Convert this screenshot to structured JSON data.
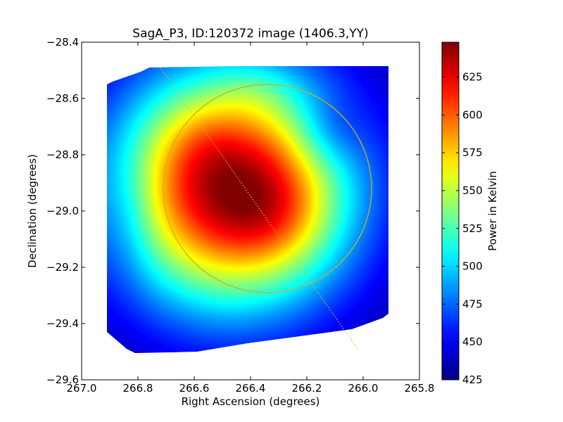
{
  "chart_data": {
    "type": "heatmap",
    "title": "SagA_P3, ID:120372 image (1406.3,YY)",
    "xlabel": "Right Ascension (degrees)",
    "ylabel": "Declination (degrees)",
    "xlim": [
      267.0,
      265.8
    ],
    "ylim": [
      -29.6,
      -28.4
    ],
    "x_ticks": [
      267.0,
      266.8,
      266.6,
      266.4,
      266.2,
      266.0,
      265.8
    ],
    "x_tick_labels": [
      "267.0",
      "266.8",
      "266.6",
      "266.4",
      "266.2",
      "266.0",
      "265.8"
    ],
    "y_ticks": [
      -28.4,
      -28.6,
      -28.8,
      -29.0,
      -29.2,
      -29.4,
      -29.6
    ],
    "y_tick_labels": [
      "−28.4",
      "−28.6",
      "−28.8",
      "−29.0",
      "−29.2",
      "−29.4",
      "−29.6"
    ],
    "grid": false,
    "colormap": "jet",
    "colorbar": {
      "label": "Power in Kelvin",
      "range": [
        425,
        648
      ],
      "ticks": [
        425,
        450,
        475,
        500,
        525,
        550,
        575,
        600,
        625
      ],
      "tick_labels": [
        "425",
        "450",
        "475",
        "500",
        "525",
        "550",
        "575",
        "600",
        "625"
      ]
    },
    "image_footprint": {
      "polygon_ra_dec": [
        [
          266.91,
          -28.55
        ],
        [
          266.89,
          -28.54
        ],
        [
          266.79,
          -28.505
        ],
        [
          266.76,
          -28.49
        ],
        [
          266.45,
          -28.485
        ],
        [
          265.91,
          -28.485
        ],
        [
          265.91,
          -29.365
        ],
        [
          265.93,
          -29.38
        ],
        [
          266.04,
          -29.42
        ],
        [
          266.41,
          -29.47
        ],
        [
          266.59,
          -29.5
        ],
        [
          266.81,
          -29.505
        ],
        [
          266.84,
          -29.49
        ],
        [
          266.91,
          -29.43
        ]
      ]
    },
    "intensity_model": {
      "peak_ra": 266.47,
      "peak_dec": -28.93,
      "peak_value": 648,
      "background_value": 430,
      "hotspots": [
        {
          "ra": 266.47,
          "dec": -28.92,
          "amplitude": 212,
          "sigma_ra": 0.29,
          "sigma_dec": 0.29
        },
        {
          "ra": 266.3,
          "dec": -29.02,
          "amplitude": 24,
          "sigma_ra": 0.13,
          "sigma_dec": 0.13
        },
        {
          "ra": 266.58,
          "dec": -28.75,
          "amplitude": 10,
          "sigma_ra": 0.11,
          "sigma_dec": 0.11
        },
        {
          "ra": 266.12,
          "dec": -28.72,
          "amplitude": -22,
          "sigma_ra": 0.09,
          "sigma_dec": 0.09
        },
        {
          "ra": 266.83,
          "dec": -29.0,
          "amplitude": -15,
          "sigma_ra": 0.07,
          "sigma_dec": 0.16
        },
        {
          "ra": 266.38,
          "dec": -28.57,
          "amplitude": 10,
          "sigma_ra": 0.09,
          "sigma_dec": 0.06
        }
      ]
    },
    "overlays": [
      {
        "type": "circle",
        "center_ra": 266.34,
        "center_dec": -28.92,
        "radius_deg": 0.37,
        "color": "#c8b01e"
      },
      {
        "type": "line",
        "style": "dotted",
        "from": [
          266.72,
          -28.49
        ],
        "to": [
          266.02,
          -29.49
        ],
        "color": "#e8c000"
      }
    ]
  }
}
